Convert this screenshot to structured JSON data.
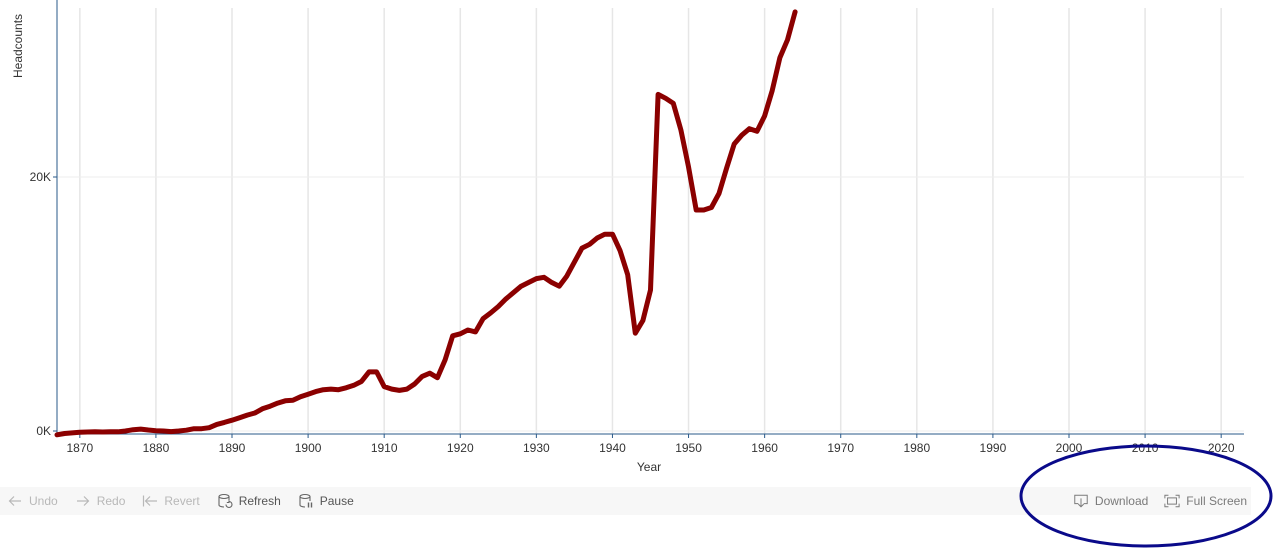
{
  "chart_data": {
    "type": "line",
    "xlabel": "Year",
    "ylabel": "Headcounts",
    "xlim": [
      1867,
      2023
    ],
    "ylim": [
      0,
      33000
    ],
    "x_ticks": [
      1870,
      1880,
      1890,
      1900,
      1910,
      1920,
      1930,
      1940,
      1950,
      1960,
      1970,
      1980,
      1990,
      2000,
      2010,
      2020
    ],
    "x_tick_labels": [
      "1870",
      "1880",
      "1890",
      "1900",
      "1910",
      "1920",
      "1930",
      "1940",
      "1950",
      "1960",
      "1970",
      "1980",
      "1990",
      "2000",
      "2010",
      "2020"
    ],
    "y_ticks": [
      0,
      20000
    ],
    "y_tick_labels": [
      "0K",
      "20K"
    ],
    "grid": true,
    "line_color": "#8b0000",
    "series": [
      {
        "x": [
          1867,
          1868,
          1869,
          1870,
          1871,
          1872,
          1873,
          1874,
          1875,
          1876,
          1877,
          1878,
          1879,
          1880,
          1881,
          1882,
          1883,
          1884,
          1885,
          1886,
          1887,
          1888,
          1889,
          1890,
          1891,
          1892,
          1893,
          1894,
          1895,
          1896,
          1897,
          1898,
          1899,
          1900,
          1901,
          1902,
          1903,
          1904,
          1905,
          1906,
          1907,
          1908,
          1909,
          1910,
          1911,
          1912,
          1913,
          1914,
          1915,
          1916,
          1917,
          1918,
          1919,
          1920,
          1921,
          1922,
          1923,
          1924,
          1925,
          1926,
          1927,
          1928,
          1929,
          1930,
          1931,
          1932,
          1933,
          1934,
          1935,
          1936,
          1937,
          1938,
          1939,
          1940,
          1941,
          1942,
          1943,
          1944,
          1945,
          1946,
          1947,
          1948,
          1949,
          1950,
          1951,
          1952,
          1953,
          1954,
          1955,
          1956,
          1957,
          1958,
          1959,
          1960,
          1961,
          1962,
          1963,
          1964
        ],
        "values": [
          -300,
          -200,
          -150,
          -100,
          -80,
          -60,
          -80,
          -60,
          -60,
          0,
          100,
          150,
          80,
          20,
          0,
          -50,
          0,
          60,
          180,
          180,
          260,
          520,
          680,
          850,
          1050,
          1250,
          1420,
          1750,
          1950,
          2200,
          2380,
          2420,
          2700,
          2900,
          3100,
          3250,
          3300,
          3250,
          3400,
          3600,
          3900,
          4650,
          4650,
          3500,
          3300,
          3200,
          3300,
          3700,
          4300,
          4550,
          4200,
          5600,
          7500,
          7650,
          7950,
          7800,
          8850,
          9300,
          9800,
          10400,
          10900,
          11400,
          11700,
          12000,
          12100,
          11700,
          11400,
          12200,
          13300,
          14400,
          14700,
          15200,
          15500,
          15500,
          14200,
          12300,
          7700,
          8700,
          11100,
          26500,
          26200,
          25800,
          23700,
          20800,
          17400,
          17400,
          17600,
          18700,
          20700,
          22600,
          23300,
          23800,
          23600,
          24800,
          26800,
          29400,
          30800,
          33000
        ]
      }
    ]
  },
  "toolbar": {
    "undo": "Undo",
    "redo": "Redo",
    "revert": "Revert",
    "refresh": "Refresh",
    "pause": "Pause",
    "download": "Download",
    "fullscreen": "Full Screen"
  },
  "annotation": {
    "ring_color": "#0a0a8a"
  }
}
